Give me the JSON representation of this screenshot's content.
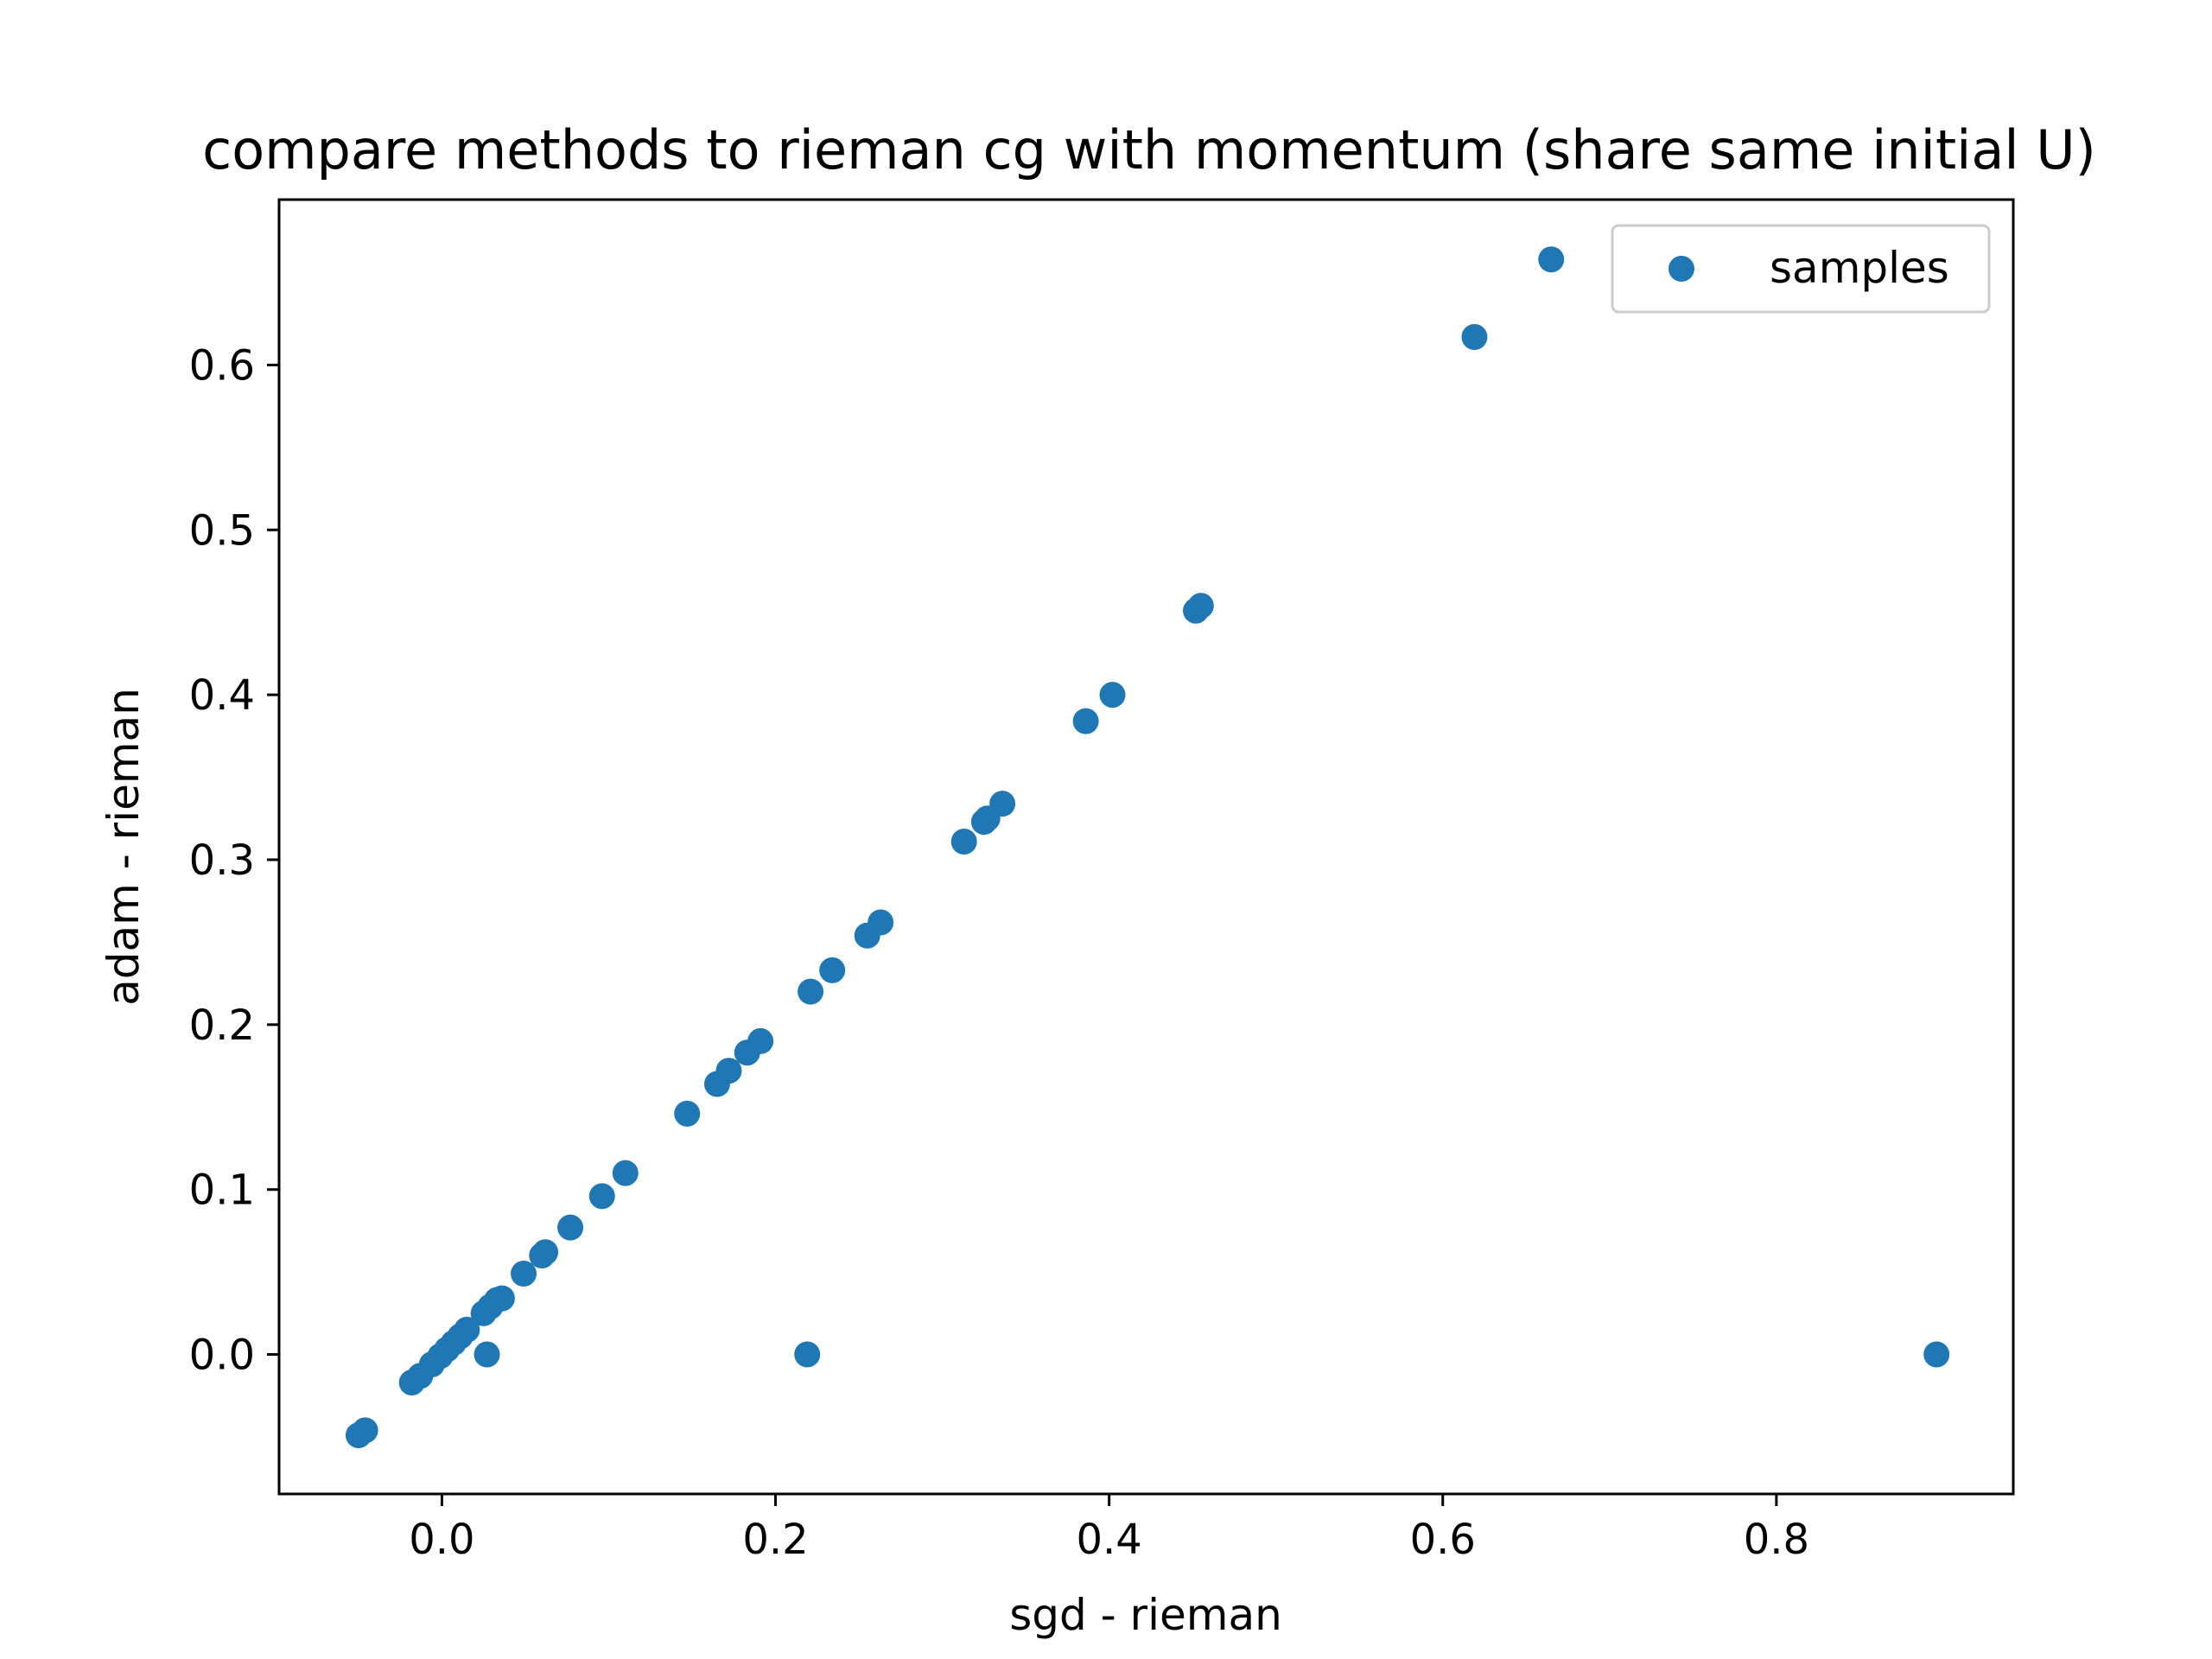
{
  "chart_data": {
    "type": "scatter",
    "title": "compare methods to rieman cg with momentum (share same initial U)",
    "xlabel": "sgd - rieman",
    "ylabel": "adam - rieman",
    "xlim": [
      -0.0976,
      0.942
    ],
    "ylim": [
      -0.0846,
      0.7003
    ],
    "xticks": [
      0.0,
      0.2,
      0.4,
      0.6,
      0.8
    ],
    "xtick_labels": [
      "0.0",
      "0.2",
      "0.4",
      "0.6",
      "0.8"
    ],
    "yticks": [
      0.0,
      0.1,
      0.2,
      0.3,
      0.4,
      0.5,
      0.6
    ],
    "ytick_labels": [
      "0.0",
      "0.1",
      "0.2",
      "0.3",
      "0.4",
      "0.5",
      "0.6"
    ],
    "grid": false,
    "legend": {
      "position": "top-right",
      "entries": [
        "samples"
      ]
    },
    "series": [
      {
        "name": "samples",
        "color": "#1f77b4",
        "points": [
          [
            -0.05,
            -0.049
          ],
          [
            -0.046,
            -0.046
          ],
          [
            -0.018,
            -0.017
          ],
          [
            -0.013,
            -0.013
          ],
          [
            -0.006,
            -0.006
          ],
          [
            -0.001,
            -0.001
          ],
          [
            0.003,
            0.003
          ],
          [
            0.007,
            0.007
          ],
          [
            0.011,
            0.011
          ],
          [
            0.015,
            0.015
          ],
          [
            0.025,
            0.025
          ],
          [
            0.029,
            0.029
          ],
          [
            0.033,
            0.033
          ],
          [
            0.036,
            0.034
          ],
          [
            0.027,
            0.0
          ],
          [
            0.049,
            0.049
          ],
          [
            0.06,
            0.06
          ],
          [
            0.062,
            0.062
          ],
          [
            0.077,
            0.077
          ],
          [
            0.096,
            0.096
          ],
          [
            0.11,
            0.11
          ],
          [
            0.147,
            0.146
          ],
          [
            0.165,
            0.164
          ],
          [
            0.172,
            0.172
          ],
          [
            0.183,
            0.183
          ],
          [
            0.191,
            0.19
          ],
          [
            0.221,
            0.22
          ],
          [
            0.234,
            0.233
          ],
          [
            0.255,
            0.254
          ],
          [
            0.263,
            0.262
          ],
          [
            0.219,
            0.0
          ],
          [
            0.313,
            0.311
          ],
          [
            0.325,
            0.323
          ],
          [
            0.327,
            0.325
          ],
          [
            0.336,
            0.334
          ],
          [
            0.386,
            0.384
          ],
          [
            0.402,
            0.4
          ],
          [
            0.452,
            0.451
          ],
          [
            0.455,
            0.454
          ],
          [
            0.619,
            0.617
          ],
          [
            0.665,
            0.664
          ],
          [
            0.896,
            0.0
          ]
        ]
      }
    ]
  }
}
